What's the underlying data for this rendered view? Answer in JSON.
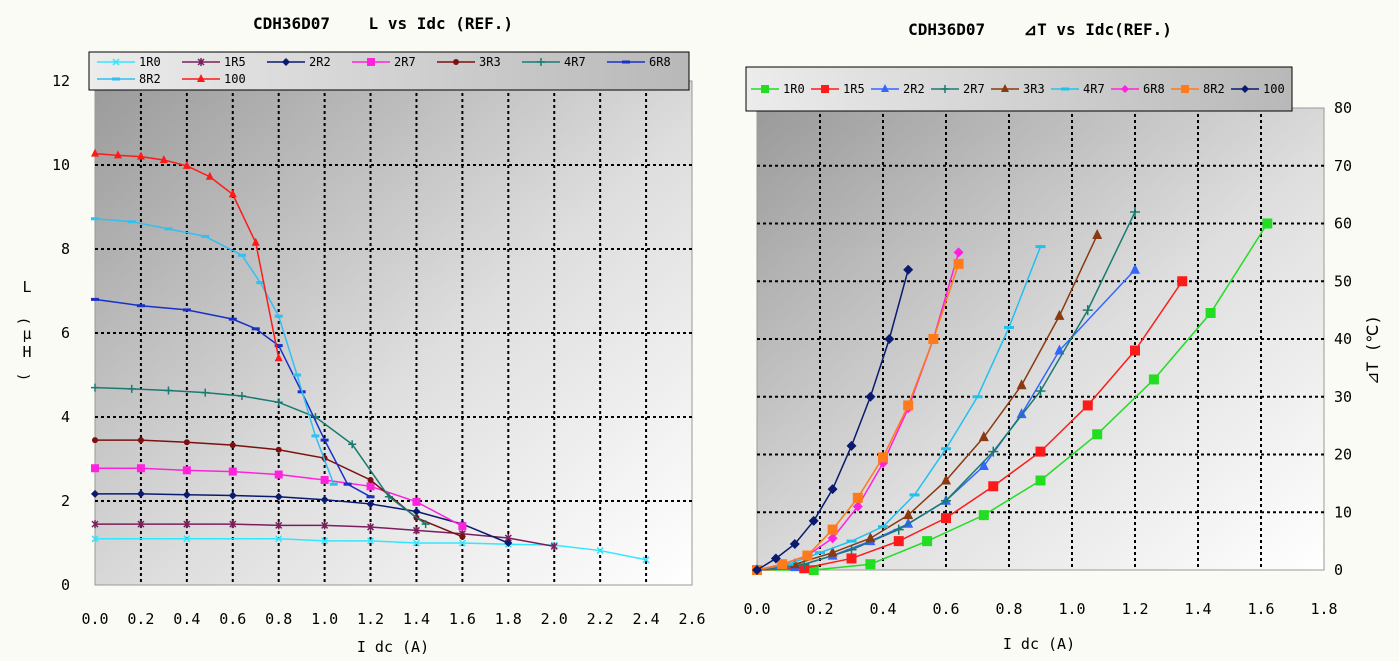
{
  "chart_data": [
    {
      "type": "line",
      "title": "CDH36D07    L vs Idc (REF.)",
      "xlabel": "I dc (A)",
      "ylabel": [
        "L",
        "μ",
        "H",
        "(",
        ")"
      ],
      "xlim": [
        0,
        2.6
      ],
      "ylim": [
        0,
        12
      ],
      "x_ticks": [
        "0.0",
        "0.2",
        "0.4",
        "0.6",
        "0.8",
        "1.0",
        "1.2",
        "1.4",
        "1.6",
        "1.8",
        "2.0",
        "2.2",
        "2.4",
        "2.6"
      ],
      "y_ticks": [
        "0",
        "2",
        "4",
        "6",
        "8",
        "10",
        "12"
      ],
      "grid": true,
      "legend_position": "top",
      "series": [
        {
          "name": "1R0",
          "color": "#33e6ff",
          "marker": "x",
          "points": [
            [
              0,
              1.1
            ],
            [
              0.4,
              1.1
            ],
            [
              0.8,
              1.1
            ],
            [
              1.0,
              1.05
            ],
            [
              1.2,
              1.05
            ],
            [
              1.4,
              1.0
            ],
            [
              1.6,
              1.0
            ],
            [
              1.8,
              0.97
            ],
            [
              2.0,
              0.95
            ],
            [
              2.2,
              0.82
            ],
            [
              2.4,
              0.6
            ]
          ]
        },
        {
          "name": "1R5",
          "color": "#7a1f5c",
          "marker": "star",
          "points": [
            [
              0,
              1.45
            ],
            [
              0.2,
              1.45
            ],
            [
              0.4,
              1.45
            ],
            [
              0.6,
              1.45
            ],
            [
              0.8,
              1.42
            ],
            [
              1.0,
              1.42
            ],
            [
              1.2,
              1.38
            ],
            [
              1.4,
              1.3
            ],
            [
              1.6,
              1.22
            ],
            [
              1.8,
              1.12
            ],
            [
              2.0,
              0.92
            ]
          ]
        },
        {
          "name": "2R2",
          "color": "#0a1a6e",
          "marker": "diamond",
          "points": [
            [
              0,
              2.17
            ],
            [
              0.2,
              2.17
            ],
            [
              0.4,
              2.15
            ],
            [
              0.6,
              2.13
            ],
            [
              0.8,
              2.1
            ],
            [
              1.0,
              2.03
            ],
            [
              1.2,
              1.93
            ],
            [
              1.4,
              1.75
            ],
            [
              1.6,
              1.45
            ],
            [
              1.8,
              1.0
            ]
          ]
        },
        {
          "name": "2R7",
          "color": "#ff22dd",
          "marker": "square",
          "points": [
            [
              0,
              2.78
            ],
            [
              0.2,
              2.78
            ],
            [
              0.4,
              2.73
            ],
            [
              0.6,
              2.7
            ],
            [
              0.8,
              2.63
            ],
            [
              1.0,
              2.5
            ],
            [
              1.2,
              2.35
            ],
            [
              1.4,
              1.98
            ],
            [
              1.6,
              1.4
            ]
          ]
        },
        {
          "name": "3R3",
          "color": "#7a1010",
          "marker": "circle",
          "points": [
            [
              0,
              3.45
            ],
            [
              0.2,
              3.45
            ],
            [
              0.4,
              3.4
            ],
            [
              0.6,
              3.33
            ],
            [
              0.8,
              3.22
            ],
            [
              1.0,
              3.02
            ],
            [
              1.2,
              2.5
            ],
            [
              1.4,
              1.6
            ],
            [
              1.6,
              1.15
            ]
          ]
        },
        {
          "name": "4R7",
          "color": "#1a7a70",
          "marker": "plus",
          "points": [
            [
              0,
              4.7
            ],
            [
              0.16,
              4.67
            ],
            [
              0.32,
              4.63
            ],
            [
              0.48,
              4.58
            ],
            [
              0.64,
              4.5
            ],
            [
              0.8,
              4.35
            ],
            [
              0.96,
              4.0
            ],
            [
              1.12,
              3.35
            ],
            [
              1.28,
              2.1
            ],
            [
              1.44,
              1.45
            ]
          ]
        },
        {
          "name": "6R8",
          "color": "#1830c8",
          "marker": "dash",
          "points": [
            [
              0,
              6.8
            ],
            [
              0.2,
              6.65
            ],
            [
              0.4,
              6.55
            ],
            [
              0.6,
              6.33
            ],
            [
              0.7,
              6.1
            ],
            [
              0.8,
              5.7
            ],
            [
              0.9,
              4.6
            ],
            [
              1.0,
              3.45
            ],
            [
              1.1,
              2.4
            ],
            [
              1.2,
              2.1
            ]
          ]
        },
        {
          "name": "8R2",
          "color": "#33bff0",
          "marker": "dash",
          "points": [
            [
              0,
              8.72
            ],
            [
              0.16,
              8.65
            ],
            [
              0.32,
              8.48
            ],
            [
              0.48,
              8.3
            ],
            [
              0.64,
              7.85
            ],
            [
              0.72,
              7.2
            ],
            [
              0.8,
              6.4
            ],
            [
              0.88,
              5.0
            ],
            [
              0.96,
              3.55
            ],
            [
              1.04,
              2.4
            ]
          ]
        },
        {
          "name": "100",
          "color": "#ff1a1a",
          "marker": "triangle",
          "points": [
            [
              0,
              10.27
            ],
            [
              0.1,
              10.23
            ],
            [
              0.2,
              10.2
            ],
            [
              0.3,
              10.12
            ],
            [
              0.4,
              9.98
            ],
            [
              0.5,
              9.72
            ],
            [
              0.6,
              9.3
            ],
            [
              0.7,
              8.15
            ],
            [
              0.8,
              5.4
            ]
          ]
        }
      ]
    },
    {
      "type": "line",
      "title": "CDH36D07    ⊿T vs Idc(REF.)",
      "xlabel": "I dc (A)",
      "ylabel": "⊿T (℃)",
      "xlim": [
        0,
        1.8
      ],
      "ylim": [
        0,
        80
      ],
      "x_ticks": [
        "0.0",
        "0.2",
        "0.4",
        "0.6",
        "0.8",
        "1.0",
        "1.2",
        "1.4",
        "1.6",
        "1.8"
      ],
      "y_ticks": [
        "0",
        "10",
        "20",
        "30",
        "40",
        "50",
        "60",
        "70",
        "80"
      ],
      "grid": true,
      "legend_position": "top",
      "series": [
        {
          "name": "1R0",
          "color": "#22dd22",
          "marker": "square",
          "points": [
            [
              0,
              0
            ],
            [
              0.18,
              0
            ],
            [
              0.36,
              1
            ],
            [
              0.54,
              5
            ],
            [
              0.72,
              9.5
            ],
            [
              0.9,
              15.5
            ],
            [
              1.08,
              23.5
            ],
            [
              1.26,
              33
            ],
            [
              1.44,
              44.5
            ],
            [
              1.62,
              60
            ]
          ]
        },
        {
          "name": "1R5",
          "color": "#ff1a1a",
          "marker": "square",
          "points": [
            [
              0,
              0
            ],
            [
              0.15,
              0.3
            ],
            [
              0.3,
              2
            ],
            [
              0.45,
              5
            ],
            [
              0.6,
              9
            ],
            [
              0.75,
              14.5
            ],
            [
              0.9,
              20.5
            ],
            [
              1.05,
              28.5
            ],
            [
              1.2,
              38
            ],
            [
              1.35,
              50
            ]
          ]
        },
        {
          "name": "2R2",
          "color": "#3366ff",
          "marker": "triangle",
          "points": [
            [
              0,
              0
            ],
            [
              0.12,
              0.5
            ],
            [
              0.24,
              2.5
            ],
            [
              0.36,
              5
            ],
            [
              0.48,
              8
            ],
            [
              0.6,
              12
            ],
            [
              0.72,
              18
            ],
            [
              0.84,
              27
            ],
            [
              0.96,
              38
            ],
            [
              1.2,
              52
            ]
          ]
        },
        {
          "name": "2R7",
          "color": "#1a7a70",
          "marker": "plus",
          "points": [
            [
              0,
              0
            ],
            [
              0.15,
              1
            ],
            [
              0.3,
              3.5
            ],
            [
              0.45,
              7
            ],
            [
              0.6,
              12
            ],
            [
              0.75,
              20.5
            ],
            [
              0.9,
              31
            ],
            [
              1.05,
              45
            ],
            [
              1.2,
              62
            ]
          ]
        },
        {
          "name": "3R3",
          "color": "#8a3a10",
          "marker": "triangle",
          "points": [
            [
              0,
              0
            ],
            [
              0.12,
              1
            ],
            [
              0.24,
              3
            ],
            [
              0.36,
              5.5
            ],
            [
              0.48,
              9.5
            ],
            [
              0.6,
              15.5
            ],
            [
              0.72,
              23
            ],
            [
              0.84,
              32
            ],
            [
              0.96,
              44
            ],
            [
              1.08,
              58
            ]
          ]
        },
        {
          "name": "4R7",
          "color": "#22c0f0",
          "marker": "dash",
          "points": [
            [
              0,
              0
            ],
            [
              0.1,
              1
            ],
            [
              0.2,
              3
            ],
            [
              0.3,
              5
            ],
            [
              0.4,
              7.5
            ],
            [
              0.5,
              13
            ],
            [
              0.6,
              21
            ],
            [
              0.7,
              30
            ],
            [
              0.8,
              42
            ],
            [
              0.9,
              56
            ]
          ]
        },
        {
          "name": "6R8",
          "color": "#ff22dd",
          "marker": "diamond",
          "points": [
            [
              0,
              0
            ],
            [
              0.08,
              1
            ],
            [
              0.16,
              2.5
            ],
            [
              0.24,
              5.5
            ],
            [
              0.32,
              11
            ],
            [
              0.4,
              18.5
            ],
            [
              0.48,
              28
            ],
            [
              0.56,
              40
            ],
            [
              0.64,
              55
            ]
          ]
        },
        {
          "name": "8R2",
          "color": "#ff7a1a",
          "marker": "square",
          "points": [
            [
              0,
              0
            ],
            [
              0.08,
              1
            ],
            [
              0.16,
              2.5
            ],
            [
              0.24,
              7
            ],
            [
              0.32,
              12.5
            ],
            [
              0.4,
              19.5
            ],
            [
              0.48,
              28.5
            ],
            [
              0.56,
              40
            ],
            [
              0.64,
              53
            ]
          ]
        },
        {
          "name": "100",
          "color": "#0a1a6e",
          "marker": "diamond",
          "points": [
            [
              0,
              0
            ],
            [
              0.06,
              2
            ],
            [
              0.12,
              4.5
            ],
            [
              0.18,
              8.5
            ],
            [
              0.24,
              14
            ],
            [
              0.3,
              21.5
            ],
            [
              0.36,
              30
            ],
            [
              0.42,
              40
            ],
            [
              0.48,
              52
            ]
          ]
        }
      ]
    }
  ]
}
